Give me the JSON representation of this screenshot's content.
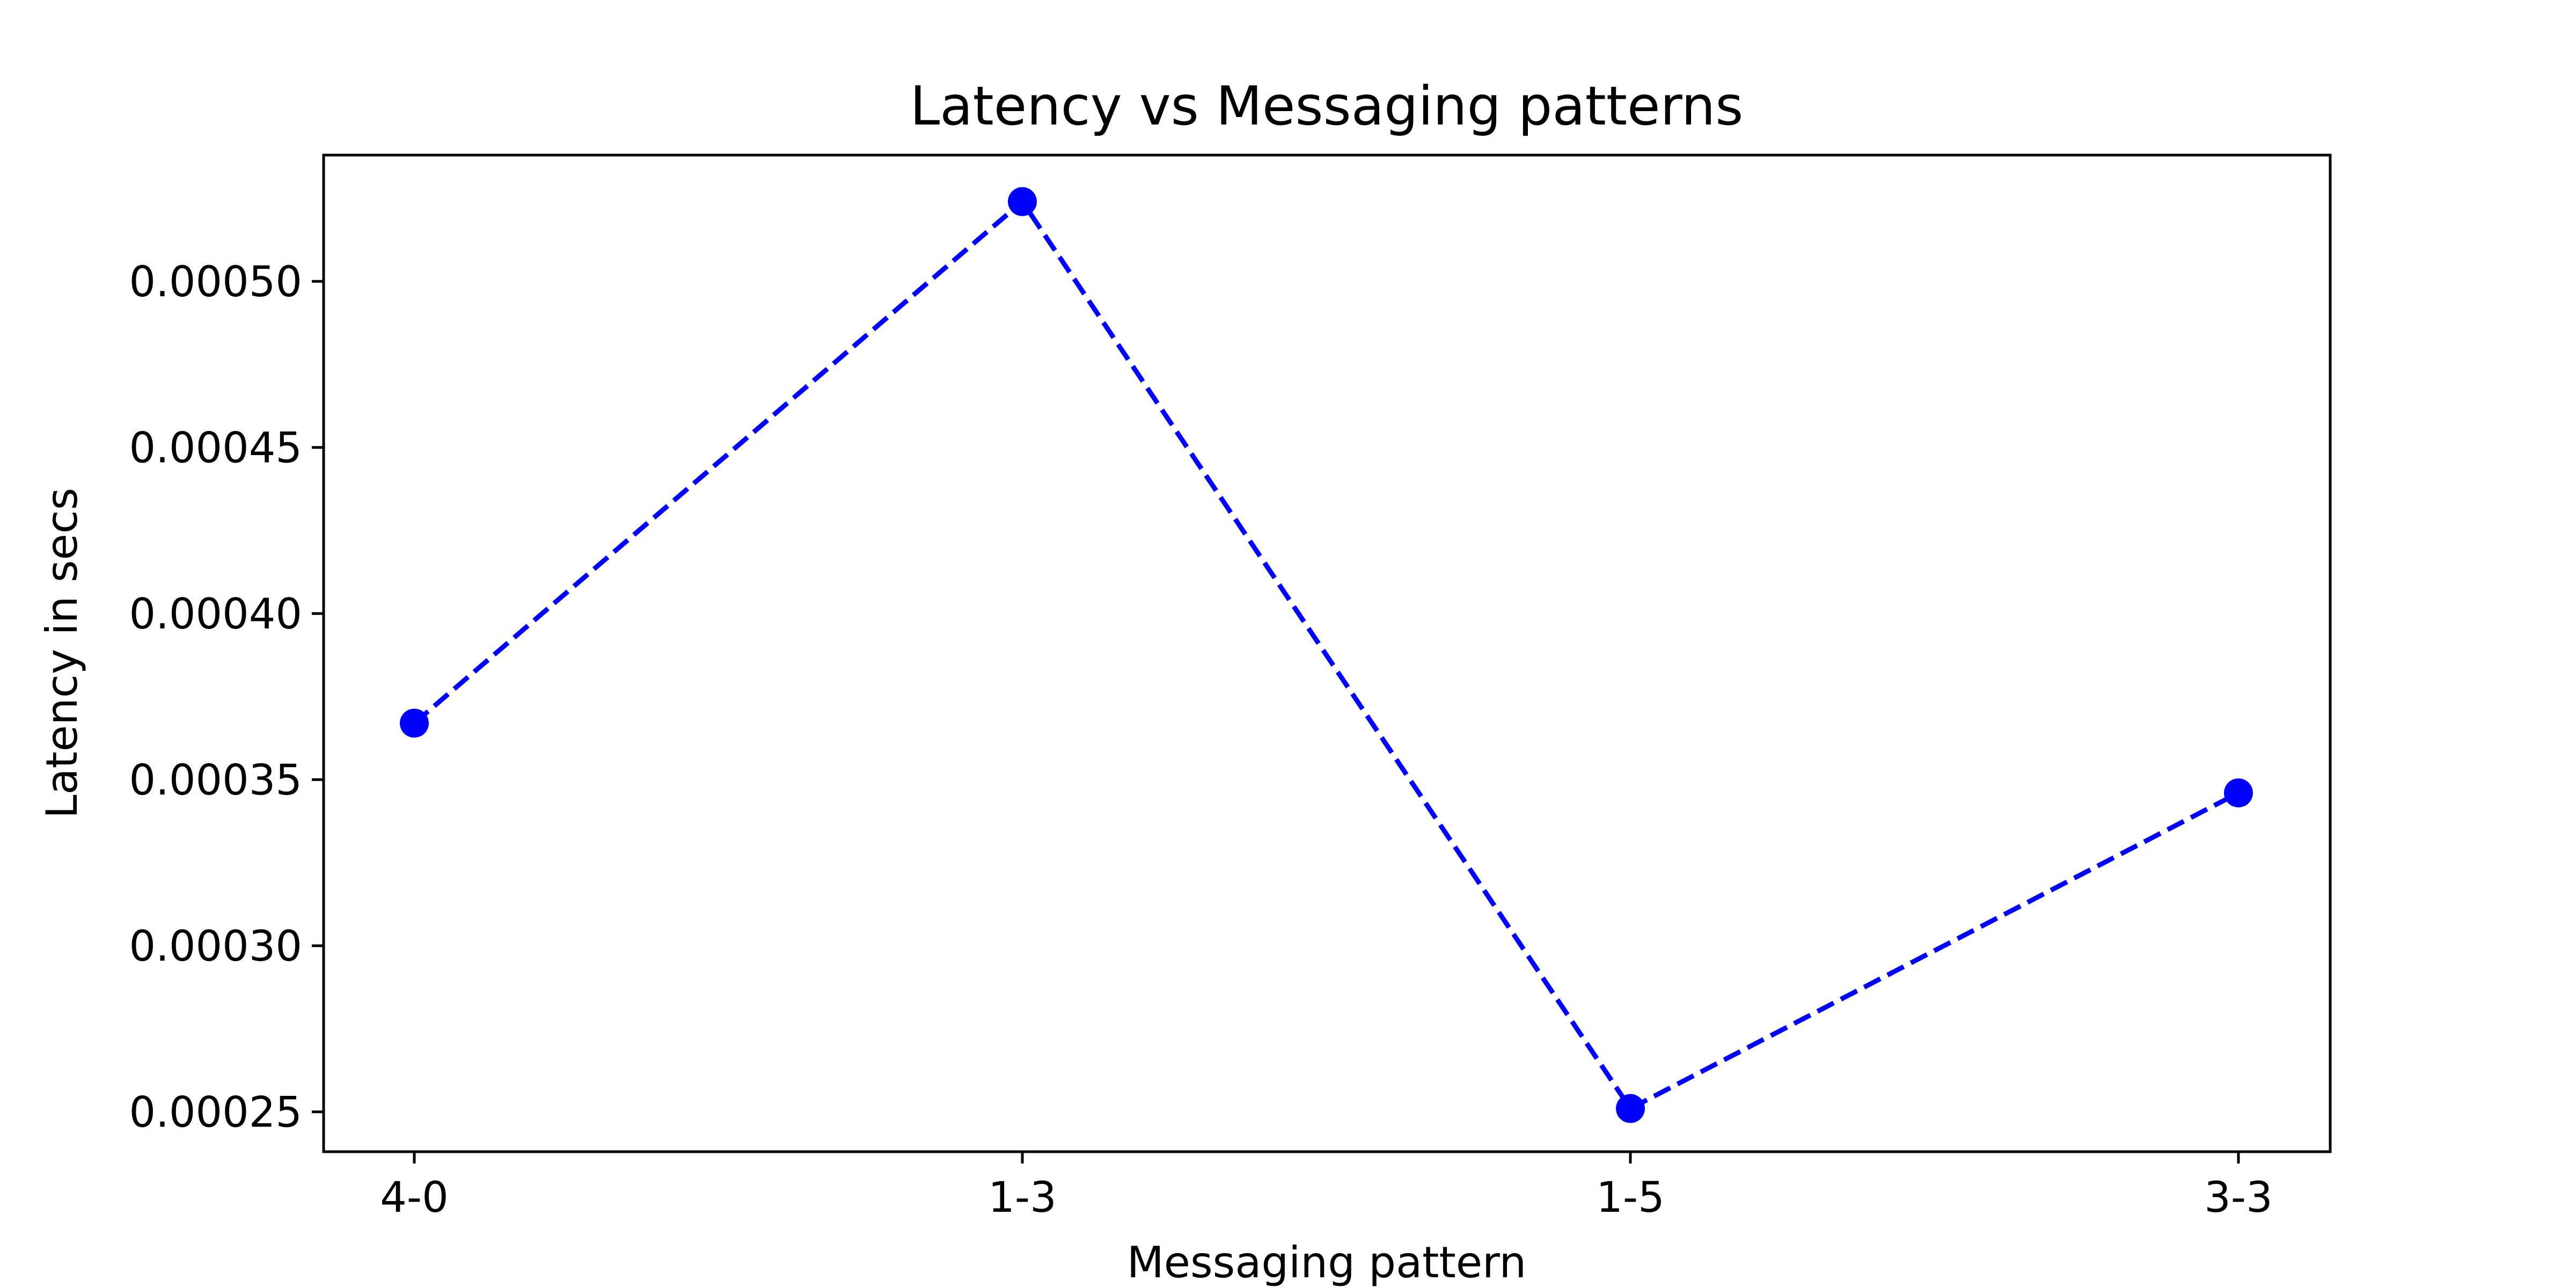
{
  "chart_data": {
    "type": "line",
    "title": "Latency vs Messaging patterns",
    "xlabel": "Messaging pattern",
    "ylabel": "Latency in secs",
    "categories": [
      "4-0",
      "1-3",
      "1-5",
      "3-3"
    ],
    "series": [
      {
        "values": [
          0.000367,
          0.000524,
          0.000251,
          0.000346
        ],
        "color": "#0000ff",
        "line_style": "dashed",
        "marker": "circle"
      }
    ],
    "ylim": [
      0.000238,
      0.000538
    ],
    "yticks": [
      0.00025,
      0.0003,
      0.00035,
      0.0004,
      0.00045,
      0.0005
    ],
    "ytick_labels": [
      "0.00025",
      "0.00030",
      "0.00035",
      "0.00040",
      "0.00045",
      "0.00050"
    ],
    "grid": false,
    "legend": "none"
  }
}
